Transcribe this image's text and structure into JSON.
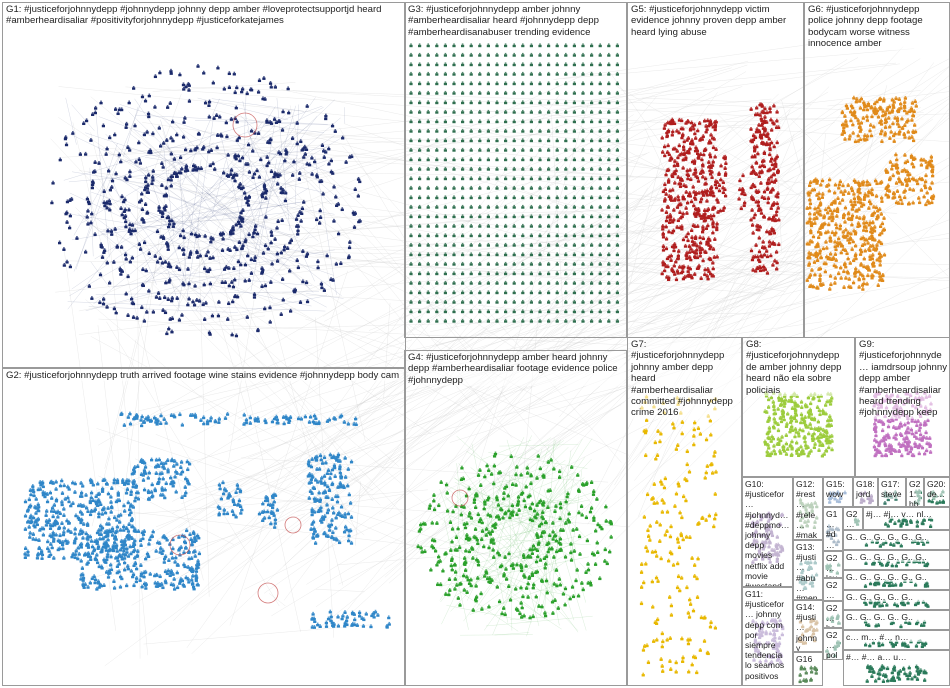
{
  "groups": [
    {
      "id": "G1",
      "label": "G1: #justiceforjohnnydepp #johnnydepp johnny depp amber #loveprotectsupportjd heard #amberheardisaliar #positivityforjohnnydepp #justiceforkatejames",
      "color": "#1b2a6b"
    },
    {
      "id": "G2",
      "label": "G2: #justiceforjohnnydepp truth arrived footage wine stains evidence #johnnydepp body cam",
      "color": "#2f86c8"
    },
    {
      "id": "G3",
      "label": "G3: #justiceforjohnnydepp amber johnny #amberheardisaliar heard #johnnydepp depp #amberheardisanabuser trending evidence",
      "color": "#2f6f4f"
    },
    {
      "id": "G4",
      "label": "G4: #justiceforjohnnydepp amber heard johnny depp #amberheardisaliar footage evidence police #johnnydepp",
      "color": "#2aa02a"
    },
    {
      "id": "G5",
      "label": "G5: #justiceforjohnnydepp victim evidence johnny proven depp amber heard lying abuse",
      "color": "#b01e1e"
    },
    {
      "id": "G6",
      "label": "G6: #justiceforjohnnydepp police johnny depp footage bodycam worse witness innocence amber",
      "color": "#e08a1a"
    },
    {
      "id": "G7",
      "label": "G7: #justiceforjohnnydepp johnny amber depp heard #amberheardisaliar committed #johnnydepp crime 2016",
      "color": "#e8b800"
    },
    {
      "id": "G8",
      "label": "G8: #justiceforjohnnydepp de amber johnny depp heard não ela sobre policiais",
      "color": "#9ccc3c"
    },
    {
      "id": "G9",
      "label": "G9: #justiceforjohnnyde… iamdrsoup johnny depp amber #amberheardisaliar heard trending #johnnydepp keep",
      "color": "#c070c0"
    },
    {
      "id": "G10",
      "label": "G10: #justicefor… #johnnyd… #deppmo… johnny depp movies netflix add movie #westand…",
      "color": "#7a5a9a"
    },
    {
      "id": "G11",
      "label": "G11: #justicefor… johnny depp com por siempre tendencia lo seamos positivos",
      "color": "#8a6ab0"
    },
    {
      "id": "G12",
      "label": "G12: #rest… #rele… #mak… #man… #amb…",
      "color": "#6a9a6a"
    },
    {
      "id": "G13",
      "label": "G13: #justi… #abu… #men…",
      "color": "#4a8a8a"
    },
    {
      "id": "G14",
      "label": "G14: #justi… johnny depp…",
      "color": "#aa7a3a"
    },
    {
      "id": "G15",
      "label": "G15: wow…",
      "color": "#3a6aaa"
    },
    {
      "id": "G16",
      "label": "G16",
      "color": "#5a8a5a"
    },
    {
      "id": "G17",
      "label": "G17: steve",
      "color": "#3a7a6a"
    },
    {
      "id": "G18",
      "label": "G18: jord…",
      "color": "#6a4a8a"
    },
    {
      "id": "G19",
      "label": "G1… #d… 30… la…",
      "color": "#4a6a8a"
    },
    {
      "id": "G20",
      "label": "G20: de…",
      "color": "#2a7a5a"
    },
    {
      "id": "G21",
      "label": "G21: hbo…",
      "color": "#2a7a5a"
    },
    {
      "id": "G22a",
      "label": "G2… lov…",
      "color": "#2a7a5a"
    },
    {
      "id": "G22b",
      "label": "G2… #j…",
      "color": "#2a7a5a"
    },
    {
      "id": "G22c",
      "label": "G2… ha…",
      "color": "#2a7a5a"
    },
    {
      "id": "G22d",
      "label": "G2… pol…",
      "color": "#2a7a5a"
    },
    {
      "id": "G22e",
      "label": "G2… ree…",
      "color": "#2a7a5a"
    },
    {
      "id": "G_a",
      "label": "#j… #j… v… nl…",
      "color": "#2a7a5a"
    },
    {
      "id": "G_b",
      "label": "G.. G.. G.. G.. G.. G..",
      "color": "#2a7a5a"
    },
    {
      "id": "G_c",
      "label": "G.. G.. G.. G.. G.. G..",
      "color": "#2a7a5a"
    },
    {
      "id": "G_d",
      "label": "G.. G.. G.. G.. G.. G..",
      "color": "#2a7a5a"
    },
    {
      "id": "G_e",
      "label": "G.. G.. G.. G.. G..",
      "color": "#2a7a5a"
    },
    {
      "id": "G_f",
      "label": "G.. G.. G.. G.. G..",
      "color": "#2a7a5a"
    },
    {
      "id": "G_g",
      "label": "c… m… #… n…",
      "color": "#2a7a5a"
    },
    {
      "id": "G_h",
      "label": "#… #… a… u…",
      "color": "#2a7a5a"
    }
  ]
}
